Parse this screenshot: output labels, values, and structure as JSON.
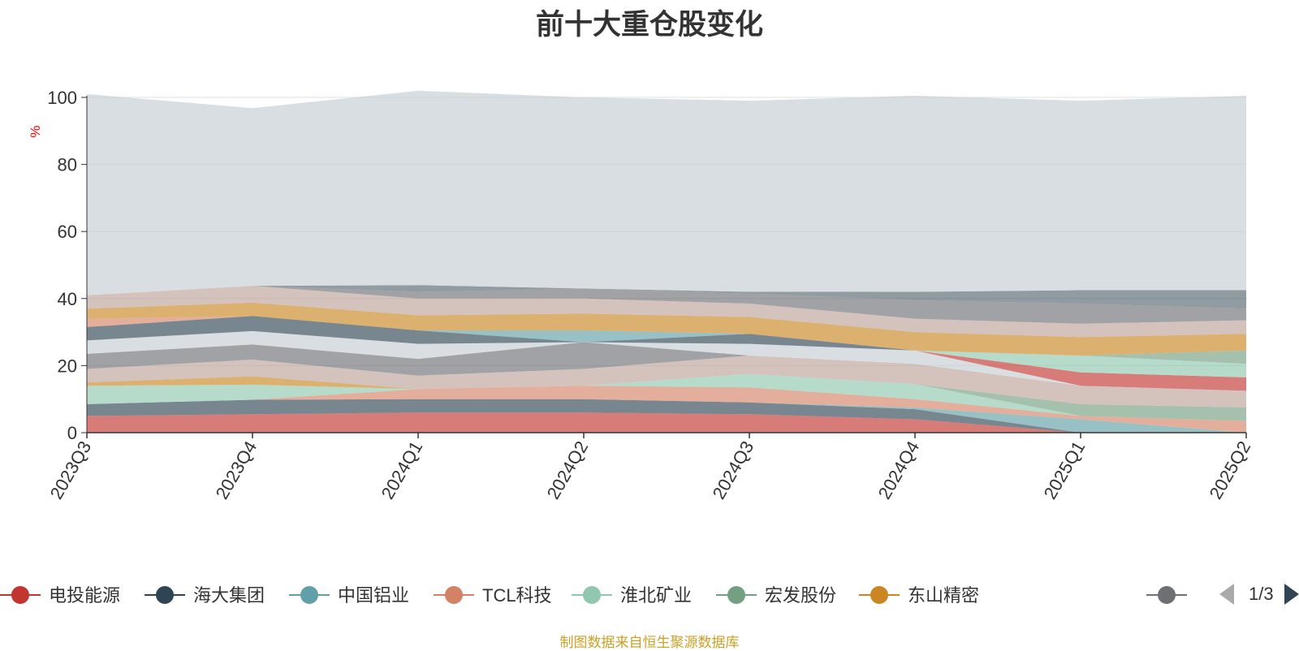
{
  "source_note": "制图数据来自恒生聚源数据库",
  "pager": {
    "text": "1/3"
  },
  "chart_data": {
    "type": "area",
    "title": "前十大重仓股变化",
    "ylabel": "%",
    "xlabel": "",
    "ylim": [
      0,
      100
    ],
    "yticks": [
      0,
      20,
      40,
      60,
      80,
      100
    ],
    "grid": true,
    "legend_position": "bottom",
    "x": [
      "2023Q3",
      "2023Q4",
      "2024Q1",
      "2024Q2",
      "2024Q3",
      "2024Q4",
      "2025Q1",
      "2025Q2"
    ],
    "series": [
      {
        "name": "电投能源",
        "color": "#c23531",
        "values": [
          5.0,
          5.5,
          6.0,
          6.0,
          5.5,
          4.0,
          0.0,
          0.0
        ]
      },
      {
        "name": "海大集团",
        "color": "#2f4554",
        "values": [
          3.5,
          4.3,
          4.0,
          4.0,
          3.5,
          3.0,
          0.0,
          0.0
        ]
      },
      {
        "name": "中国铝业",
        "color": "#61a0a8",
        "values": [
          0.0,
          0.0,
          0.0,
          0.0,
          0.0,
          0.5,
          4.0,
          0.0
        ]
      },
      {
        "name": "TCL科技",
        "color": "#d48265",
        "values": [
          0.0,
          0.0,
          3.0,
          4.0,
          4.5,
          2.5,
          1.0,
          3.5
        ]
      },
      {
        "name": "淮北矿业",
        "color": "#91c7ae",
        "values": [
          5.5,
          4.5,
          0.0,
          0.0,
          4.0,
          4.5,
          0.0,
          0.0
        ]
      },
      {
        "name": "宏发股份",
        "color": "#749f83",
        "values": [
          0.0,
          0.0,
          0.0,
          0.0,
          0.0,
          0.0,
          3.5,
          4.0
        ]
      },
      {
        "name": "东山精密",
        "color": "#ca8622",
        "values": [
          1.0,
          2.5,
          0.0,
          0.0,
          0.0,
          0.0,
          0.0,
          0.0
        ]
      }
    ],
    "other_series": [
      {
        "color": "#bda29a",
        "values": [
          4.0,
          5.0,
          4.0,
          5.0,
          5.5,
          6.0,
          5.5,
          5.0
        ]
      },
      {
        "color": "#6e7074",
        "values": [
          4.5,
          4.5,
          5.0,
          8.0,
          0.0,
          0.0,
          0.0,
          0.0
        ]
      },
      {
        "color": "#c4ccd3",
        "values": [
          4.0,
          4.0,
          4.5,
          0.0,
          3.5,
          4.0,
          0.0,
          0.0
        ]
      },
      {
        "color": "#2f4554",
        "values": [
          4.0,
          4.5,
          4.0,
          0.0,
          3.0,
          0.0,
          0.0,
          0.0
        ]
      },
      {
        "color": "#c23531",
        "values": [
          0.0,
          0.0,
          0.0,
          0.0,
          0.0,
          0.0,
          4.0,
          4.0
        ]
      },
      {
        "color": "#d48265",
        "values": [
          2.5,
          0.0,
          0.0,
          0.0,
          0.0,
          0.0,
          0.0,
          0.0
        ]
      },
      {
        "color": "#61a0a8",
        "values": [
          0.0,
          0.0,
          0.0,
          3.5,
          0.0,
          0.0,
          0.0,
          0.0
        ]
      },
      {
        "color": "#91c7ae",
        "values": [
          0.0,
          0.0,
          0.0,
          0.0,
          0.0,
          0.0,
          5.0,
          4.0
        ]
      },
      {
        "color": "#749f83",
        "values": [
          0.0,
          0.0,
          0.0,
          0.0,
          0.0,
          0.0,
          0.0,
          4.0
        ]
      },
      {
        "color": "#ca8622",
        "values": [
          3.0,
          4.0,
          4.5,
          5.0,
          5.0,
          5.5,
          5.5,
          5.0
        ]
      },
      {
        "color": "#bda29a",
        "values": [
          4.0,
          5.0,
          5.0,
          4.5,
          4.0,
          4.0,
          4.0,
          4.0
        ]
      },
      {
        "color": "#6e7074",
        "values": [
          0.0,
          0.0,
          2.0,
          3.0,
          3.0,
          5.5,
          6.0,
          3.5
        ]
      },
      {
        "color": "#546570",
        "values": [
          0.0,
          0.0,
          2.0,
          0.0,
          0.5,
          2.5,
          4.0,
          5.5
        ]
      },
      {
        "color": "#c4ccd3",
        "values": [
          60.0,
          53.0,
          58.0,
          57.0,
          57.0,
          58.5,
          56.5,
          58.0
        ]
      }
    ]
  }
}
